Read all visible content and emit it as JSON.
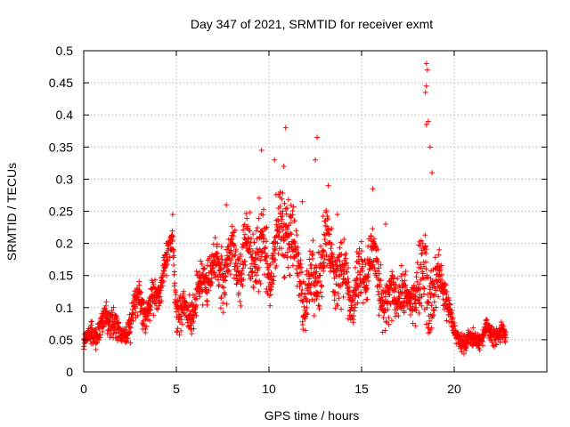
{
  "chart_data": {
    "type": "scatter",
    "title": "Day 347 of 2021, SRMTID for receiver exmt",
    "xlabel": "GPS time / hours",
    "ylabel": "SRMTID / TECUs",
    "xlim": [
      0,
      25
    ],
    "ylim": [
      0,
      0.5
    ],
    "xticks": [
      0,
      5,
      10,
      15,
      20
    ],
    "xtick_labels": [
      "0",
      "5",
      "10",
      "15",
      "20"
    ],
    "yticks": [
      0,
      0.05,
      0.1,
      0.15,
      0.2,
      0.25,
      0.3,
      0.35,
      0.4,
      0.45,
      0.5
    ],
    "ytick_labels": [
      "0",
      "0.05",
      "0.1",
      "0.15",
      "0.2",
      "0.25",
      "0.3",
      "0.35",
      "0.4",
      "0.45",
      "0.5"
    ],
    "grid": true,
    "marker": "+",
    "color": "#ff0000",
    "series": [
      {
        "name": "SRMTID",
        "profile_hours": [
          0,
          0.5,
          1,
          1.5,
          2,
          2.5,
          3,
          3.5,
          4,
          4.5,
          4.8,
          5,
          5.5,
          6,
          6.5,
          7,
          7.5,
          8,
          8.5,
          9,
          9.5,
          10,
          10.5,
          11,
          11.5,
          12,
          12.5,
          13,
          13.5,
          14,
          14.5,
          15,
          15.5,
          16,
          16.5,
          17,
          17.5,
          18,
          18.5,
          19,
          19.5,
          20,
          20.5,
          21,
          21.5,
          22,
          22.5,
          22.8
        ],
        "profile_center": [
          0.04,
          0.055,
          0.08,
          0.1,
          0.045,
          0.07,
          0.12,
          0.1,
          0.13,
          0.16,
          0.21,
          0.1,
          0.1,
          0.11,
          0.13,
          0.15,
          0.17,
          0.19,
          0.16,
          0.17,
          0.2,
          0.19,
          0.2,
          0.21,
          0.16,
          0.13,
          0.15,
          0.17,
          0.15,
          0.16,
          0.13,
          0.14,
          0.16,
          0.14,
          0.12,
          0.13,
          0.09,
          0.13,
          0.17,
          0.14,
          0.12,
          0.055,
          0.05,
          0.055,
          0.05,
          0.06,
          0.06,
          0.06
        ],
        "profile_spread": [
          0.015,
          0.03,
          0.04,
          0.04,
          0.02,
          0.035,
          0.04,
          0.04,
          0.04,
          0.04,
          0.03,
          0.05,
          0.05,
          0.05,
          0.05,
          0.05,
          0.06,
          0.07,
          0.07,
          0.08,
          0.09,
          0.09,
          0.09,
          0.09,
          0.08,
          0.07,
          0.09,
          0.09,
          0.07,
          0.07,
          0.06,
          0.06,
          0.07,
          0.07,
          0.06,
          0.07,
          0.05,
          0.07,
          0.12,
          0.06,
          0.05,
          0.02,
          0.02,
          0.02,
          0.02,
          0.025,
          0.025,
          0.02
        ],
        "peaks": [
          {
            "x": 9.6,
            "y": 0.345
          },
          {
            "x": 10.3,
            "y": 0.33
          },
          {
            "x": 10.9,
            "y": 0.38
          },
          {
            "x": 11.8,
            "y": 0.265
          },
          {
            "x": 12.6,
            "y": 0.365
          },
          {
            "x": 13.2,
            "y": 0.29
          },
          {
            "x": 15.6,
            "y": 0.285
          },
          {
            "x": 18.5,
            "y": 0.48
          },
          {
            "x": 18.55,
            "y": 0.47
          },
          {
            "x": 18.5,
            "y": 0.445
          },
          {
            "x": 18.45,
            "y": 0.435
          },
          {
            "x": 18.6,
            "y": 0.39
          },
          {
            "x": 18.5,
            "y": 0.385
          },
          {
            "x": 18.7,
            "y": 0.35
          },
          {
            "x": 18.8,
            "y": 0.31
          },
          {
            "x": 4.8,
            "y": 0.245
          },
          {
            "x": 7.7,
            "y": 0.26
          },
          {
            "x": 10.8,
            "y": 0.32
          },
          {
            "x": 12.5,
            "y": 0.33
          },
          {
            "x": 13.7,
            "y": 0.245
          },
          {
            "x": 16.3,
            "y": 0.23
          }
        ]
      }
    ]
  }
}
